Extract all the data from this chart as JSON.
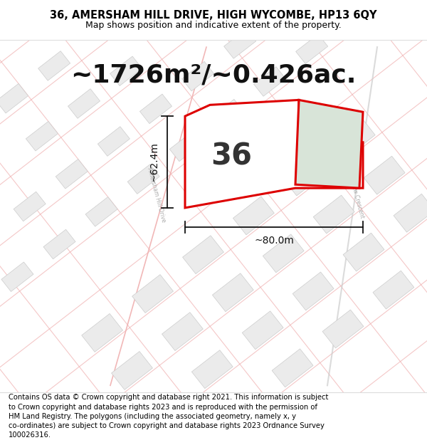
{
  "title_line1": "36, AMERSHAM HILL DRIVE, HIGH WYCOMBE, HP13 6QY",
  "title_line2": "Map shows position and indicative extent of the property.",
  "area_text": "~1726m²/~0.426ac.",
  "house_number": "36",
  "dim_vertical": "~62.4m",
  "dim_horizontal": "~80.0m",
  "footer_text": "Contains OS data © Crown copyright and database right 2021. This information is subject to Crown copyright and database rights 2023 and is reproduced with the permission of HM Land Registry. The polygons (including the associated geometry, namely x, y co-ordinates) are subject to Crown copyright and database rights 2023 Ordnance Survey 100026316.",
  "bg_color": "#ffffff",
  "map_bg": "#faf5f5",
  "street_line_color": "#f0b0b0",
  "building_fill": "#ebebeb",
  "building_edge": "#cccccc",
  "property_fill_white": "#ffffff",
  "property_fill_green": "#d8e4d8",
  "property_edge": "#dd0000",
  "title_fontsize": 10.5,
  "subtitle_fontsize": 9.0,
  "area_fontsize": 26,
  "number_fontsize": 30,
  "dim_fontsize": 10,
  "footer_fontsize": 7.2,
  "street_label_color": "#aaaaaa",
  "street_label_fontsize": 5.5
}
